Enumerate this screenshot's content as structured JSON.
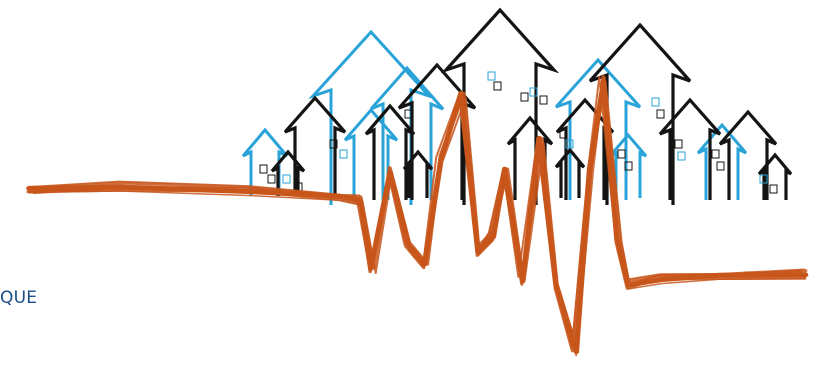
{
  "caption": {
    "text": "QUE",
    "color": "#1b4f86"
  },
  "illustration": {
    "subject": "houses-with-seismic-wave",
    "colors": {
      "outline_dark": "#141414",
      "outline_blue": "#2aa3d8",
      "wave_orange": "#c8561b"
    }
  }
}
